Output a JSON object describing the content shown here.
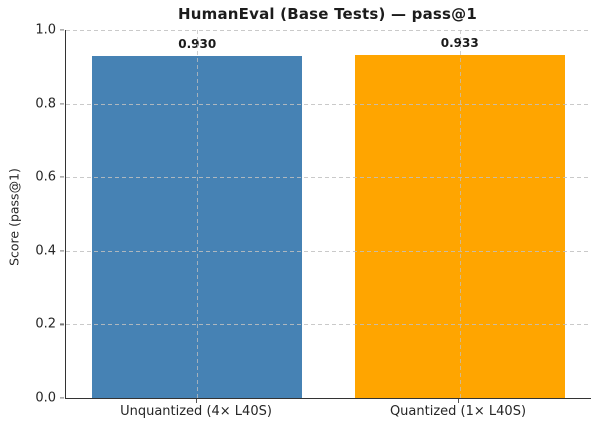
{
  "chart_data": {
    "type": "bar",
    "title": "HumanEval (Base Tests) — pass@1",
    "ylabel": "Score (pass@1)",
    "xlabel": "",
    "categories": [
      "Unquantized (4× L40S)",
      "Quantized (1× L40S)"
    ],
    "values": [
      0.93,
      0.933
    ],
    "value_labels": [
      "0.930",
      "0.933"
    ],
    "bar_colors": [
      "#4682B4",
      "#FFA500"
    ],
    "ylim": [
      0.0,
      1.0
    ],
    "yticks": [
      "0.0",
      "0.2",
      "0.4",
      "0.6",
      "0.8",
      "1.0"
    ],
    "grid": {
      "axis": "both",
      "style": "dashed",
      "color": "#c0c0c0",
      "above_bars": true
    },
    "spines": {
      "left": true,
      "bottom": true,
      "top": false,
      "right": false
    },
    "legend_visible": false
  }
}
